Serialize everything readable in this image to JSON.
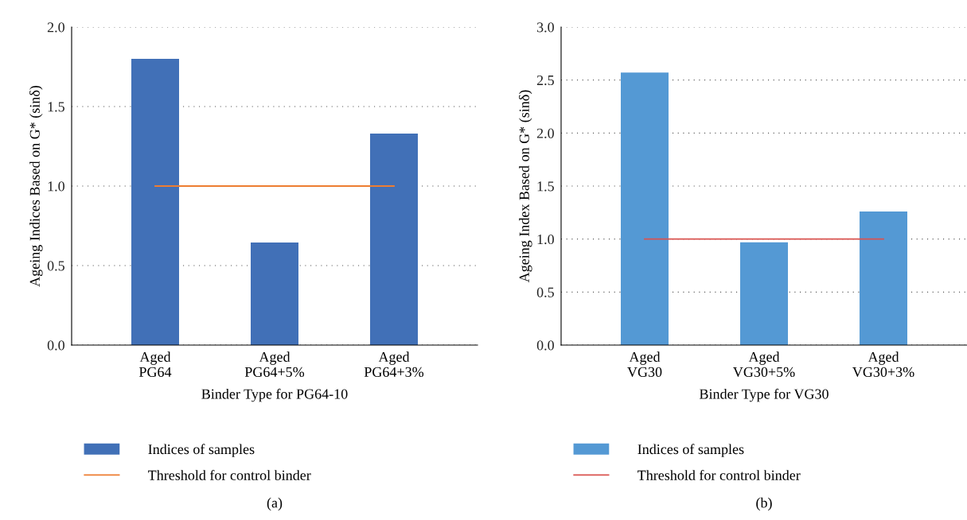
{
  "chart_data": [
    {
      "type": "bar",
      "categories": [
        "Aged\nPG64",
        "Aged\nPG64+5%",
        "Aged\nPG64+3%"
      ],
      "xlabel": "Binder Type for PG64-10",
      "ylabel": "Ageing Indices Based on G* (sinδ)",
      "ylim": [
        0,
        2
      ],
      "yticks": [
        {
          "value": 0,
          "label": "0.0"
        },
        {
          "value": 0.5,
          "label": "0.5"
        },
        {
          "value": 1,
          "label": "1.0"
        },
        {
          "value": 1.5,
          "label": "1.5"
        },
        {
          "value": 2,
          "label": "2.0"
        }
      ],
      "grid": "y",
      "legend": "bottom",
      "annotations": [
        "(a)"
      ],
      "series": [
        {
          "name": "Indices of samples",
          "color": "#4170b7",
          "values": [
            1.8,
            0.645,
            1.33
          ]
        },
        {
          "name": "Threshold for control binder",
          "type": "line",
          "color": "#ed7d31",
          "values": [
            1,
            1,
            1
          ]
        }
      ]
    },
    {
      "type": "bar",
      "categories": [
        "Aged\nVG30",
        "Aged\nVG30+5%",
        "Aged\nVG30+3%"
      ],
      "xlabel": "Binder Type for VG30",
      "ylabel": "Ageing Index Based on G* (sinδ)",
      "ylim": [
        0,
        3
      ],
      "yticks": [
        {
          "value": 0,
          "label": "0.0"
        },
        {
          "value": 0.5,
          "label": "0.5"
        },
        {
          "value": 1,
          "label": "1.0"
        },
        {
          "value": 1.5,
          "label": "1.5"
        },
        {
          "value": 2,
          "label": "2.0"
        },
        {
          "value": 2.5,
          "label": "2.5"
        },
        {
          "value": 3,
          "label": "3.0"
        }
      ],
      "grid": "y",
      "legend": "bottom",
      "annotations": [
        "(b)"
      ],
      "series": [
        {
          "name": "Indices of samples",
          "color": "#5499d4",
          "values": [
            2.57,
            0.97,
            1.26
          ]
        },
        {
          "name": "Threshold for control binder",
          "type": "line",
          "color": "#d9534f",
          "values": [
            1,
            1,
            1
          ]
        }
      ]
    }
  ]
}
